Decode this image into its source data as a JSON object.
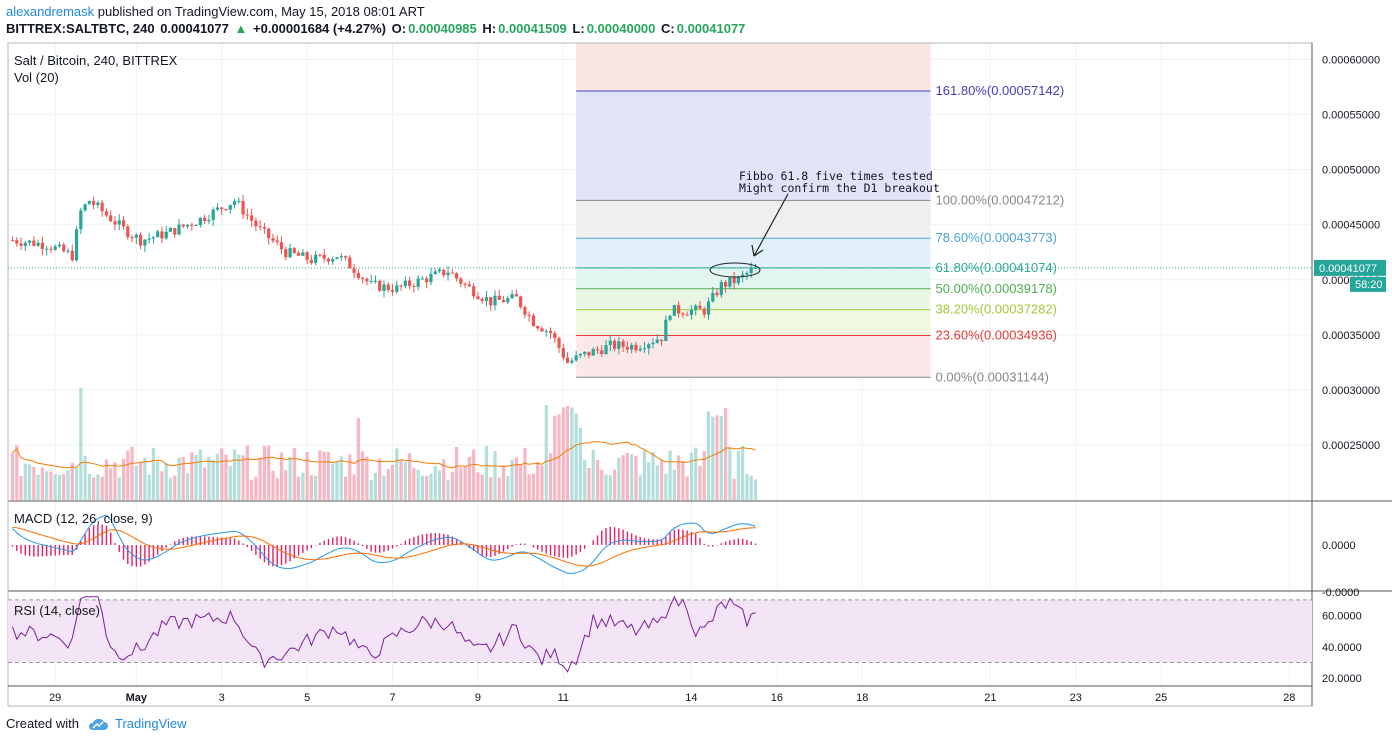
{
  "header": {
    "author": "alexandremask",
    "published_text": "published on TradingView.com, May 15, 2018 08:01 ART",
    "symbol_label": "BITTREX:SALTBTC, 240",
    "last": "0.00041077",
    "change": "+0.00001684 (+4.27%)",
    "o_label": "O:",
    "o_value": "0.00040985",
    "h_label": "H:",
    "h_value": "0.00041509",
    "l_label": "L:",
    "l_value": "0.00040000",
    "c_label": "C:",
    "c_value": "0.00041077"
  },
  "footer": {
    "created_with": "Created with",
    "brand": "TradingView"
  },
  "colors": {
    "up": "#26a69a",
    "down": "#ef5350",
    "vol_up": "#b2dfdb",
    "vol_down": "#f7b6c2",
    "ma": "#f57c00",
    "macd": "#2196f3",
    "signal": "#ff6d00",
    "hist": "#e91e63",
    "rsi": "#7b1fa2",
    "rsi_bg": "#f3e5f5"
  },
  "chart_data": {
    "type": "candlestick",
    "title": "Salt / Bitcoin, 240, BITTREX",
    "volume_label": "Vol (20)",
    "macd_label": "MACD (12, 26, close, 9)",
    "rsi_label": "RSI (14, close)",
    "ylim": [
      0.0002,
      0.000615
    ],
    "y_ticks": [
      "0.00060000",
      "0.00055000",
      "0.00050000",
      "0.00045000",
      "0.00040000",
      "0.00035000",
      "0.00030000",
      "0.00025000"
    ],
    "price_label": "0.00041077",
    "countdown_label": "58:20",
    "last_price": 0.00041077,
    "x_ticks": [
      {
        "label": "29",
        "bar": 10
      },
      {
        "label": "May",
        "bar": 29
      },
      {
        "label": "3",
        "bar": 49
      },
      {
        "label": "5",
        "bar": 69
      },
      {
        "label": "7",
        "bar": 89
      },
      {
        "label": "9",
        "bar": 109
      },
      {
        "label": "11",
        "bar": 129
      },
      {
        "label": "14",
        "bar": 159
      },
      {
        "label": "16",
        "bar": 179
      },
      {
        "label": "18",
        "bar": 199
      },
      {
        "label": "21",
        "bar": 229
      },
      {
        "label": "23",
        "bar": 249
      },
      {
        "label": "25",
        "bar": 269
      },
      {
        "label": "28",
        "bar": 299
      }
    ],
    "fib": {
      "start_bar": 132,
      "end_bar": 215,
      "low": 0.00031144,
      "high": 0.00047212,
      "levels": [
        {
          "label": "161.80%(0.00057142)",
          "value": 0.00057142,
          "color": "#3f3fbf",
          "fill": "#e3e3f7"
        },
        {
          "label": "100.00%(0.00047212)",
          "value": 0.00047212,
          "color": "#888888",
          "fill": "#efefef"
        },
        {
          "label": "78.60%(0.00043773)",
          "value": 0.00043773,
          "color": "#4ba3d6",
          "fill": "#e1f0fa"
        },
        {
          "label": "61.80%(0.00041074)",
          "value": 0.00041074,
          "color": "#2ea99a",
          "fill": "#e3f5ef"
        },
        {
          "label": "50.00%(0.00039178)",
          "value": 0.00039178,
          "color": "#4caf50",
          "fill": "#eaf6e4"
        },
        {
          "label": "38.20%(0.00037282)",
          "value": 0.00037282,
          "color": "#a4c639",
          "fill": "#f1f8e2"
        },
        {
          "label": "23.60%(0.00034936)",
          "value": 0.00034936,
          "color": "#e53935",
          "fill": "#fbe9e9"
        },
        {
          "label": "0.00%(0.00031144)",
          "value": 0.00031144,
          "color": "#888888",
          "fill": "#fbe9e9"
        }
      ],
      "top_fill": "#fbe4e4"
    },
    "annotation": {
      "lines": [
        "Fibbo 61.8 five times tested",
        "Might confirm the D1 breakout"
      ]
    },
    "macd_ticks": [
      "0.0000",
      "-0.0000"
    ],
    "rsi_ticks": [
      "60.0000",
      "40.0000",
      "20.0000"
    ],
    "rsi_bands": [
      70,
      30
    ]
  }
}
